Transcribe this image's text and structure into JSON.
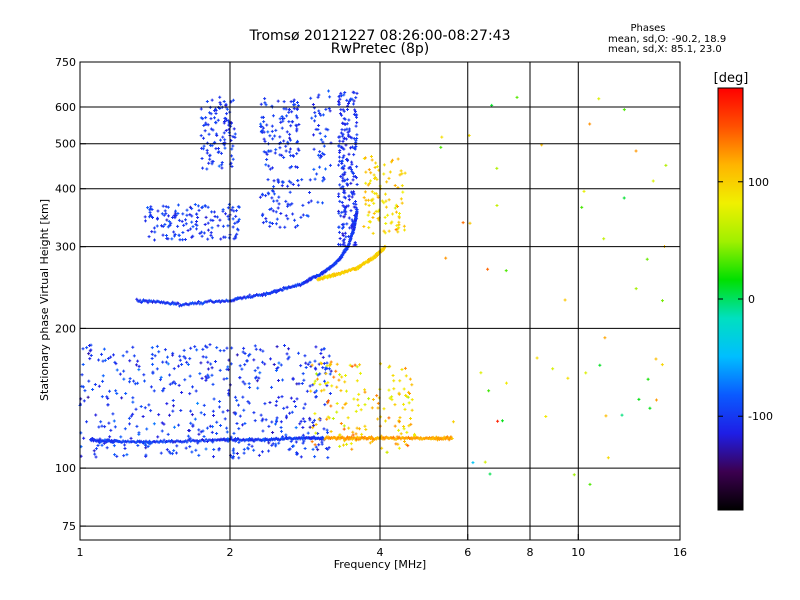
{
  "chart_data": {
    "type": "scatter",
    "title": "Tromsø 20121227 08:26:00-08:27:43",
    "subtitle": "RwPretec (8p)",
    "xlabel": "Frequency [MHz]",
    "ylabel": "Stationary phase Virtual Height [km]",
    "x_scale": "log",
    "y_scale": "log",
    "xlim": [
      1,
      16
    ],
    "ylim": [
      70,
      750
    ],
    "x_ticks": [
      1,
      2,
      4,
      6,
      8,
      10,
      16
    ],
    "y_ticks": [
      75,
      100,
      200,
      300,
      400,
      500,
      600,
      750
    ],
    "grid": true,
    "phase_box": {
      "title": "Phases",
      "line1": "mean, sd,O: -90.2, 18.9",
      "line2": "mean, sd,X:  85.1, 23.0"
    },
    "colorbar": {
      "label": "[deg]",
      "ticks": [
        100,
        0,
        -100
      ],
      "range": [
        -180,
        180
      ],
      "placement": "right",
      "colors": [
        "#000000",
        "#3c0050",
        "#1e1ee6",
        "#0a5aff",
        "#00beff",
        "#00e0c0",
        "#00e000",
        "#a0f000",
        "#f0f000",
        "#ffb400",
        "#ff5000",
        "#ff0000"
      ]
    },
    "traces": [
      {
        "points": [
          [
            1.05,
            115
          ],
          [
            1.2,
            114
          ],
          [
            1.5,
            114
          ],
          [
            1.9,
            115
          ],
          [
            2.3,
            115
          ],
          [
            2.7,
            116
          ],
          [
            3.1,
            116
          ]
        ],
        "phase": -100
      },
      {
        "points": [
          [
            3.1,
            116
          ],
          [
            3.6,
            116
          ],
          [
            4.2,
            116
          ],
          [
            5.0,
            116
          ],
          [
            5.6,
            116
          ]
        ],
        "phase": 120
      },
      {
        "points": [
          [
            1.3,
            230
          ],
          [
            1.6,
            225
          ],
          [
            2.0,
            230
          ],
          [
            2.4,
            238
          ],
          [
            2.8,
            250
          ],
          [
            3.1,
            265
          ],
          [
            3.3,
            280
          ],
          [
            3.45,
            300
          ],
          [
            3.55,
            330
          ],
          [
            3.6,
            360
          ]
        ],
        "phase": -100
      },
      {
        "points": [
          [
            3.0,
            255
          ],
          [
            3.3,
            262
          ],
          [
            3.6,
            270
          ],
          [
            3.9,
            285
          ],
          [
            4.1,
            300
          ]
        ],
        "phase": 100
      }
    ],
    "clusters": [
      {
        "x": [
          1.0,
          3.2
        ],
        "y": [
          105,
          185
        ],
        "n": 520,
        "phase": -100,
        "spread": 35
      },
      {
        "x": [
          2.9,
          4.7
        ],
        "y": [
          108,
          170
        ],
        "n": 170,
        "phase": 100,
        "spread": 60
      },
      {
        "x": [
          1.35,
          2.1
        ],
        "y": [
          310,
          370
        ],
        "n": 150,
        "phase": -100,
        "spread": 25
      },
      {
        "x": [
          1.75,
          2.05
        ],
        "y": [
          440,
          630
        ],
        "n": 110,
        "phase": -100,
        "spread": 25
      },
      {
        "x": [
          2.3,
          2.75
        ],
        "y": [
          440,
          630
        ],
        "n": 110,
        "phase": -100,
        "spread": 25
      },
      {
        "x": [
          2.3,
          2.9
        ],
        "y": [
          330,
          420
        ],
        "n": 70,
        "phase": -100,
        "spread": 25
      },
      {
        "x": [
          3.3,
          3.6
        ],
        "y": [
          300,
          650
        ],
        "n": 220,
        "phase": -105,
        "spread": 20
      },
      {
        "x": [
          3.7,
          4.5
        ],
        "y": [
          320,
          470
        ],
        "n": 100,
        "phase": 100,
        "spread": 40
      },
      {
        "x": [
          2.9,
          3.2
        ],
        "y": [
          370,
          650
        ],
        "n": 50,
        "phase": -100,
        "spread": 30
      },
      {
        "x": [
          5.0,
          15.0
        ],
        "y": [
          85,
          650
        ],
        "n": 55,
        "phase": 60,
        "spread": 140
      }
    ]
  }
}
